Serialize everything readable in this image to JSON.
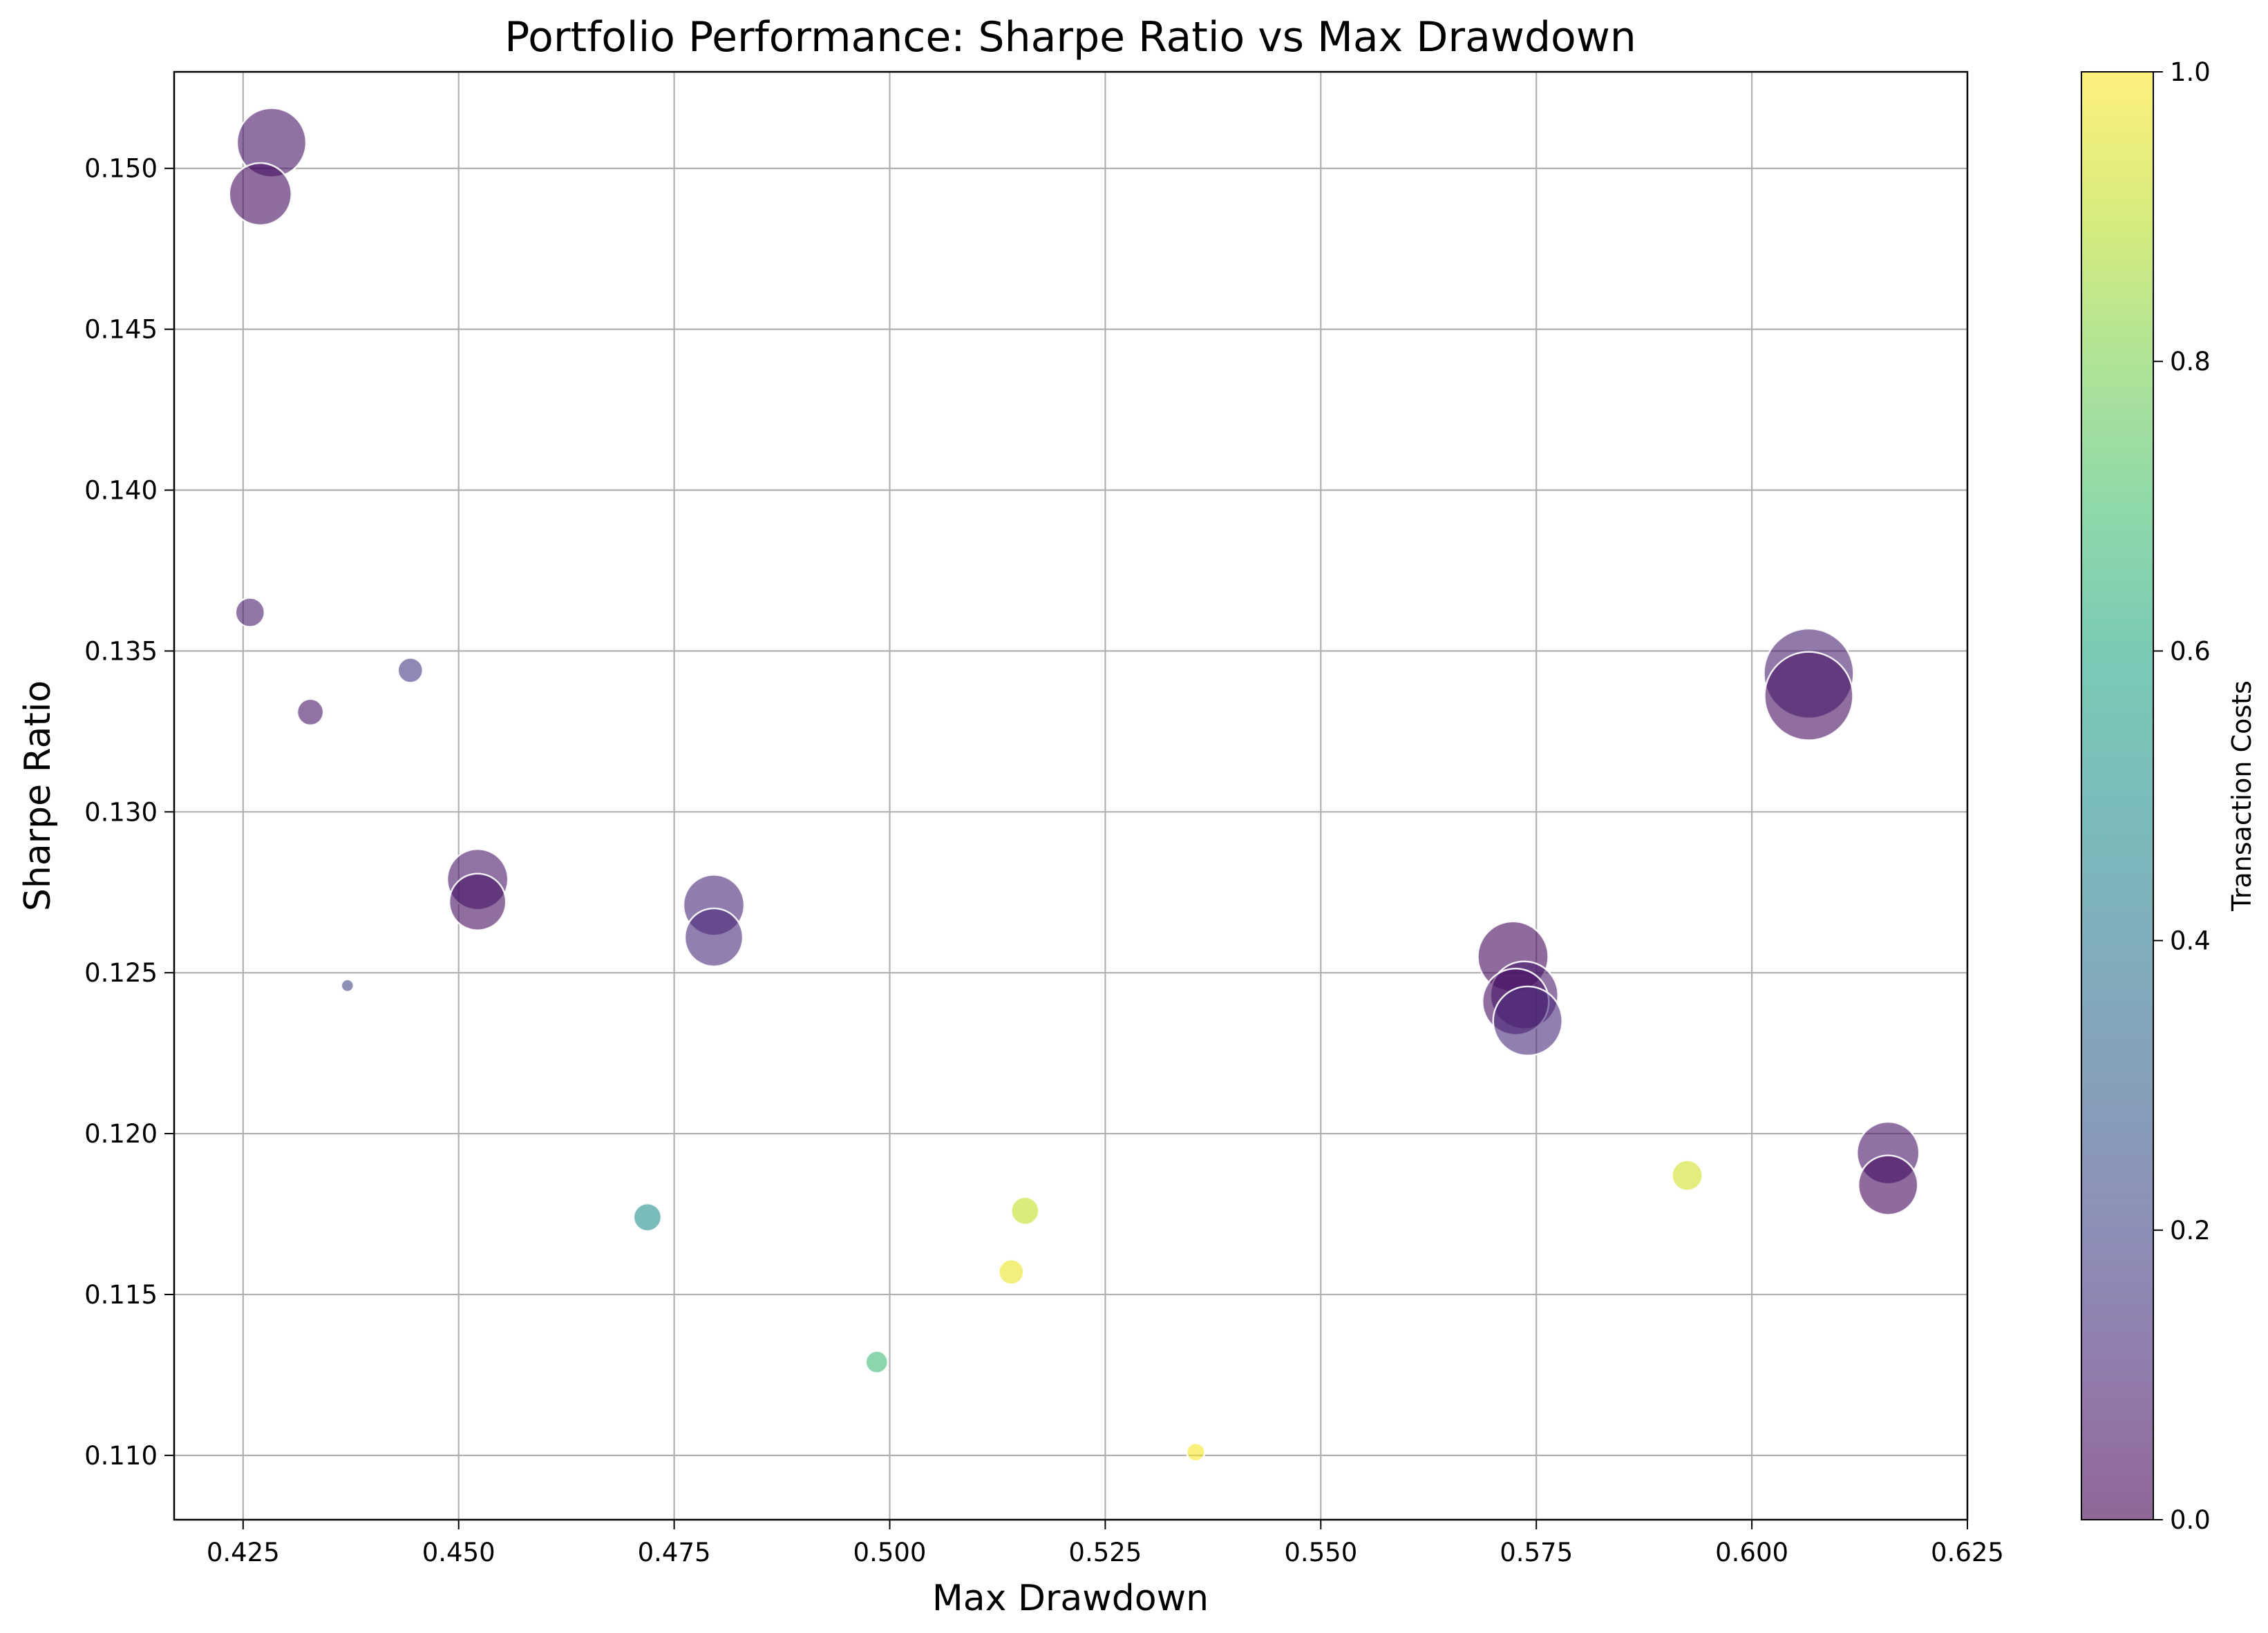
{
  "chart_data": {
    "type": "scatter",
    "title": "Portfolio Performance: Sharpe Ratio vs Max Drawdown",
    "xlabel": "Max Drawdown",
    "ylabel": "Sharpe Ratio",
    "xlim": [
      0.417,
      0.625
    ],
    "ylim": [
      0.108,
      0.153
    ],
    "xticks": [
      0.425,
      0.45,
      0.475,
      0.5,
      0.525,
      0.55,
      0.575,
      0.6,
      0.625
    ],
    "xtick_labels": [
      "0.425",
      "0.450",
      "0.475",
      "0.500",
      "0.525",
      "0.550",
      "0.575",
      "0.600",
      "0.625"
    ],
    "yticks": [
      0.11,
      0.115,
      0.12,
      0.125,
      0.13,
      0.135,
      0.14,
      0.145,
      0.15
    ],
    "ytick_labels": [
      "0.110",
      "0.115",
      "0.120",
      "0.125",
      "0.130",
      "0.135",
      "0.140",
      "0.145",
      "0.150"
    ],
    "grid": true,
    "colorbar": {
      "label": "Transaction Costs",
      "range": [
        0.0,
        1.0
      ],
      "ticks": [
        0.0,
        0.2,
        0.4,
        0.6,
        0.8,
        1.0
      ],
      "tick_labels": [
        "0.0",
        "0.2",
        "0.4",
        "0.6",
        "0.8",
        "1.0"
      ],
      "colormap": "viridis",
      "alpha": 0.6
    },
    "points": [
      {
        "x": 0.4283,
        "y": 0.1508,
        "c": 0.05,
        "size": 1.0
      },
      {
        "x": 0.427,
        "y": 0.1492,
        "c": 0.03,
        "size": 0.9
      },
      {
        "x": 0.4258,
        "y": 0.1362,
        "c": 0.08,
        "size": 0.42
      },
      {
        "x": 0.4328,
        "y": 0.1331,
        "c": 0.06,
        "size": 0.38
      },
      {
        "x": 0.4444,
        "y": 0.1344,
        "c": 0.17,
        "size": 0.36
      },
      {
        "x": 0.4371,
        "y": 0.1246,
        "c": 0.2,
        "size": 0.18
      },
      {
        "x": 0.4522,
        "y": 0.1279,
        "c": 0.06,
        "size": 0.88
      },
      {
        "x": 0.4522,
        "y": 0.1272,
        "c": 0.04,
        "size": 0.82
      },
      {
        "x": 0.4796,
        "y": 0.1271,
        "c": 0.11,
        "size": 0.88
      },
      {
        "x": 0.4796,
        "y": 0.1261,
        "c": 0.12,
        "size": 0.84
      },
      {
        "x": 0.4719,
        "y": 0.1174,
        "c": 0.49,
        "size": 0.4
      },
      {
        "x": 0.4985,
        "y": 0.1129,
        "c": 0.68,
        "size": 0.32
      },
      {
        "x": 0.5141,
        "y": 0.1157,
        "c": 0.97,
        "size": 0.36
      },
      {
        "x": 0.5157,
        "y": 0.1176,
        "c": 0.91,
        "size": 0.4
      },
      {
        "x": 0.5355,
        "y": 0.1101,
        "c": 0.99,
        "size": 0.26
      },
      {
        "x": 0.5723,
        "y": 0.1255,
        "c": 0.02,
        "size": 1.02
      },
      {
        "x": 0.5736,
        "y": 0.1243,
        "c": 0.07,
        "size": 0.98
      },
      {
        "x": 0.5726,
        "y": 0.1241,
        "c": 0.04,
        "size": 0.96
      },
      {
        "x": 0.574,
        "y": 0.1235,
        "c": 0.12,
        "size": 1.0
      },
      {
        "x": 0.5925,
        "y": 0.1187,
        "c": 0.93,
        "size": 0.44
      },
      {
        "x": 0.6066,
        "y": 0.1343,
        "c": 0.09,
        "size": 1.3
      },
      {
        "x": 0.6066,
        "y": 0.1336,
        "c": 0.04,
        "size": 1.28
      },
      {
        "x": 0.6158,
        "y": 0.1194,
        "c": 0.05,
        "size": 0.9
      },
      {
        "x": 0.6158,
        "y": 0.1184,
        "c": 0.02,
        "size": 0.86
      }
    ]
  }
}
